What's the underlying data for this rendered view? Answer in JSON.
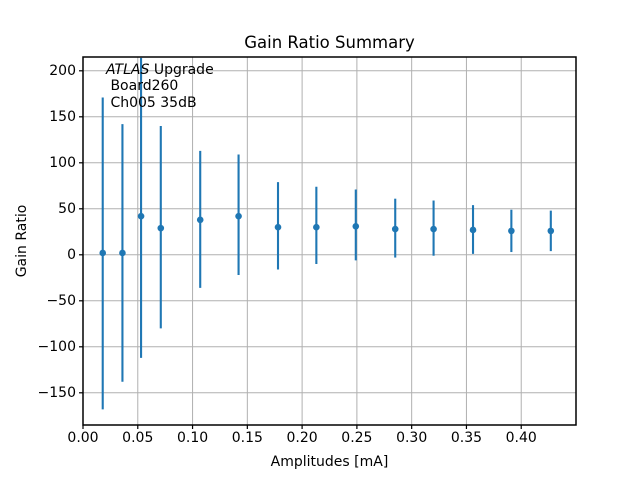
{
  "title": "Gain Ratio Summary",
  "xlabel": "Amplitudes [mA]",
  "ylabel": "Gain Ratio",
  "annotation": {
    "line1_italic": "ATLAS",
    "line1_rest": " Upgrade",
    "line2": " Board260",
    "line3": " Ch005 35dB"
  },
  "colors": {
    "series": "#1f77b4",
    "grid": "#b0b0b0",
    "axis": "#000000",
    "text": "#000000",
    "background": "#ffffff"
  },
  "chart_data": {
    "type": "scatter",
    "subtype": "errorbar",
    "title": "Gain Ratio Summary",
    "xlabel": "Amplitudes [mA]",
    "ylabel": "Gain Ratio",
    "grid": true,
    "legend": "none",
    "marker": "circle",
    "xlim": [
      0.0,
      0.45
    ],
    "ylim": [
      -185,
      215
    ],
    "x_ticks": [
      {
        "value": 0.0,
        "label": "0.00"
      },
      {
        "value": 0.05,
        "label": "0.05"
      },
      {
        "value": 0.1,
        "label": "0.10"
      },
      {
        "value": 0.15,
        "label": "0.15"
      },
      {
        "value": 0.2,
        "label": "0.20"
      },
      {
        "value": 0.25,
        "label": "0.25"
      },
      {
        "value": 0.3,
        "label": "0.30"
      },
      {
        "value": 0.35,
        "label": "0.35"
      },
      {
        "value": 0.4,
        "label": "0.40"
      }
    ],
    "y_ticks": [
      {
        "value": -150,
        "label": "−150"
      },
      {
        "value": -100,
        "label": "−100"
      },
      {
        "value": -50,
        "label": "−50"
      },
      {
        "value": 0,
        "label": "0"
      },
      {
        "value": 50,
        "label": "50"
      },
      {
        "value": 100,
        "label": "100"
      },
      {
        "value": 150,
        "label": "150"
      },
      {
        "value": 200,
        "label": "200"
      }
    ],
    "points": [
      {
        "x": 0.018,
        "y": 2,
        "y_low": -168,
        "y_high": 171
      },
      {
        "x": 0.036,
        "y": 2,
        "y_low": -138,
        "y_high": 142
      },
      {
        "x": 0.053,
        "y": 42,
        "y_low": -112,
        "y_high": 214
      },
      {
        "x": 0.071,
        "y": 29,
        "y_low": -80,
        "y_high": 140
      },
      {
        "x": 0.107,
        "y": 38,
        "y_low": -36,
        "y_high": 113
      },
      {
        "x": 0.142,
        "y": 42,
        "y_low": -22,
        "y_high": 109
      },
      {
        "x": 0.178,
        "y": 30,
        "y_low": -16,
        "y_high": 79
      },
      {
        "x": 0.213,
        "y": 30,
        "y_low": -10,
        "y_high": 74
      },
      {
        "x": 0.249,
        "y": 31,
        "y_low": -6,
        "y_high": 71
      },
      {
        "x": 0.285,
        "y": 28,
        "y_low": -3,
        "y_high": 61
      },
      {
        "x": 0.32,
        "y": 28,
        "y_low": -1,
        "y_high": 59
      },
      {
        "x": 0.356,
        "y": 27,
        "y_low": 1,
        "y_high": 54
      },
      {
        "x": 0.391,
        "y": 26,
        "y_low": 3,
        "y_high": 49
      },
      {
        "x": 0.427,
        "y": 26,
        "y_low": 4,
        "y_high": 48
      }
    ]
  }
}
